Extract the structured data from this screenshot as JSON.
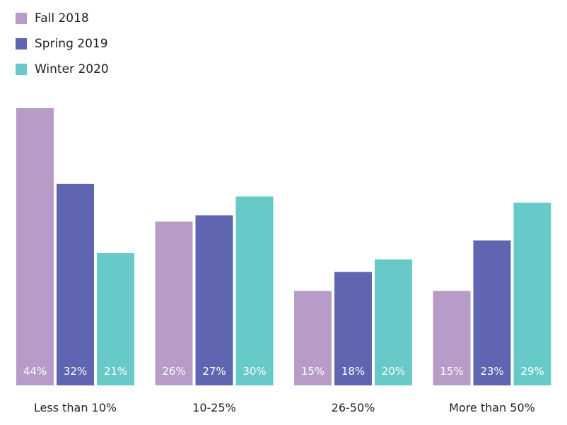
{
  "chart_data": {
    "type": "bar",
    "categories": [
      "Less than 10%",
      "10-25%",
      "26-50%",
      "More than 50%"
    ],
    "series": [
      {
        "name": "Fall 2018",
        "color": "#b79cc9",
        "values": [
          44,
          26,
          15,
          15
        ],
        "labels": [
          "44%",
          "26%",
          "15%",
          "15%"
        ]
      },
      {
        "name": "Spring 2019",
        "color": "#5f65b0",
        "values": [
          32,
          27,
          18,
          23
        ],
        "labels": [
          "32%",
          "27%",
          "18%",
          "23%"
        ]
      },
      {
        "name": "Winter 2020",
        "color": "#68c9c9",
        "values": [
          21,
          30,
          20,
          29
        ],
        "labels": [
          "21%",
          "30%",
          "20%",
          "29%"
        ]
      }
    ],
    "ylim": [
      0,
      44
    ],
    "legend": "top-left",
    "grid": false
  }
}
